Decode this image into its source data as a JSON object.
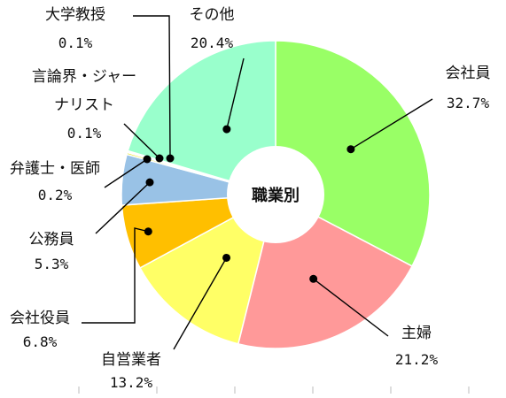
{
  "chart_data": {
    "type": "pie",
    "style": "donut",
    "title": "職業別",
    "slices": [
      {
        "label": "会社員",
        "value": 32.7,
        "value_label": "32.7%",
        "color": "#99ff66"
      },
      {
        "label": "主婦",
        "value": 21.2,
        "value_label": "21.2%",
        "color": "#ff9999"
      },
      {
        "label": "自営業者",
        "value": 13.2,
        "value_label": "13.2%",
        "color": "#ffff66"
      },
      {
        "label": "会社役員",
        "value": 6.8,
        "value_label": "6.8%",
        "color": "#ffbf00"
      },
      {
        "label": "公務員",
        "value": 5.3,
        "value_label": "5.3%",
        "color": "#99c2e6"
      },
      {
        "label": "弁護士・医師",
        "value": 0.2,
        "value_label": "0.2%",
        "color": "#e6e600"
      },
      {
        "label": "言論界・ジャーナリスト",
        "value": 0.1,
        "value_label": "0.1%",
        "color": "#ffcc99"
      },
      {
        "label": "大学教授",
        "value": 0.1,
        "value_label": "0.1%",
        "color": "#ccb3e6"
      },
      {
        "label": "その他",
        "value": 20.4,
        "value_label": "20.4%",
        "color": "#99ffcc"
      }
    ]
  }
}
